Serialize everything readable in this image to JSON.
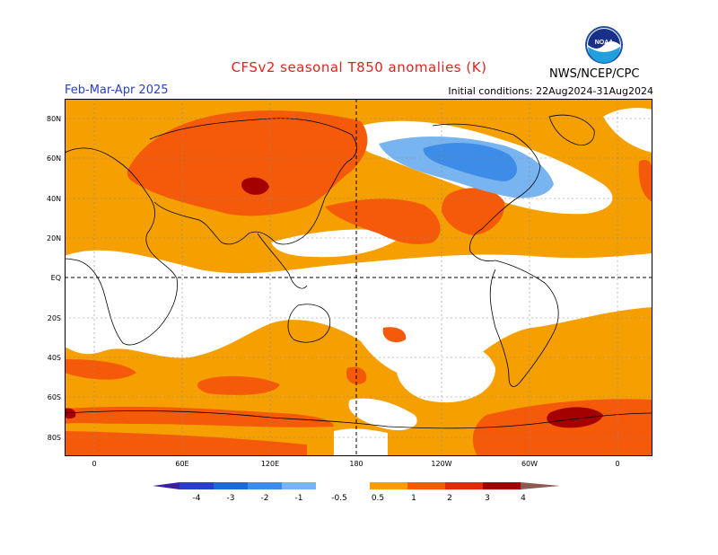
{
  "header": {
    "title": "CFSv2 seasonal T850 anomalies (K)",
    "organization": "NWS/NCEP/CPC",
    "logo_text": "NOAA",
    "season": "Feb-Mar-Apr 2025",
    "initial_conditions": "Initial conditions: 22Aug2024-31Aug2024"
  },
  "map": {
    "lat_labels": [
      "80N",
      "60N",
      "40N",
      "20N",
      "EQ",
      "20S",
      "40S",
      "60S",
      "80S"
    ],
    "lon_labels": [
      "0",
      "60E",
      "120E",
      "180",
      "120W",
      "60W",
      "0"
    ]
  },
  "colorbar": {
    "ticks": [
      "-4",
      "-3",
      "-2",
      "-1",
      "-0.5",
      "0.5",
      "1",
      "2",
      "3",
      "4"
    ],
    "colors": {
      "lt_-4": "#3c1fa0",
      "-4_-3": "#2a3ec8",
      "-3_-2": "#1e6ad2",
      "-2_-1": "#3c8ce8",
      "-1_-0.5": "#78b4f0",
      "neutral": "#ffffff",
      "0.5_1": "#f5a000",
      "1_2": "#f55a0a",
      "2_3": "#e6280a",
      "3_4": "#a50000",
      "gt_4": "#c8a096",
      "gt_4_end": "#8c5a50"
    }
  }
}
